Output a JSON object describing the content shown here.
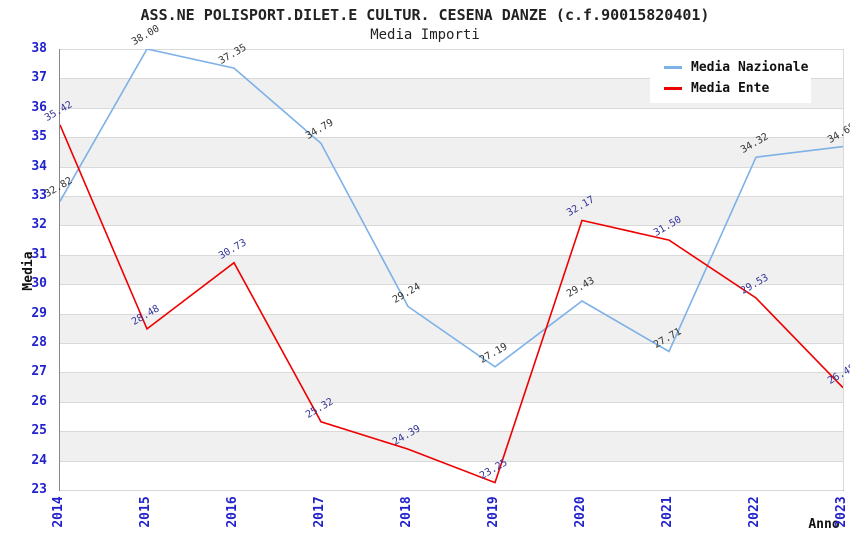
{
  "title": "ASS.NE POLISPORT.DILET.E CULTUR. CESENA DANZE (c.f.90015820401)",
  "subtitle": "Media Importi",
  "chart_data": {
    "type": "line",
    "x": [
      2014,
      2015,
      2016,
      2017,
      2018,
      2019,
      2020,
      2021,
      2022,
      2023
    ],
    "series": [
      {
        "name": "Media Nazionale",
        "color": "#7db1e8",
        "label_color": "#333333",
        "values": [
          32.82,
          38.0,
          37.35,
          34.79,
          29.24,
          27.19,
          29.43,
          27.71,
          34.32,
          34.68
        ]
      },
      {
        "name": "Media Ente",
        "color": "#ee0000",
        "label_color": "#333399",
        "values": [
          35.42,
          28.48,
          30.73,
          25.32,
          24.39,
          23.25,
          32.17,
          31.5,
          29.53,
          26.48
        ]
      }
    ],
    "xlabel": "Anno",
    "ylabel": "Media",
    "ylim": [
      23,
      38
    ],
    "ytick_step": 1,
    "grid": true,
    "legend_position": "top-right",
    "plot_band_colors": [
      "#ffffff",
      "#f0f0f0"
    ],
    "gridline_color": "#d9d9d9",
    "tick_label_color": "#2222cc"
  }
}
